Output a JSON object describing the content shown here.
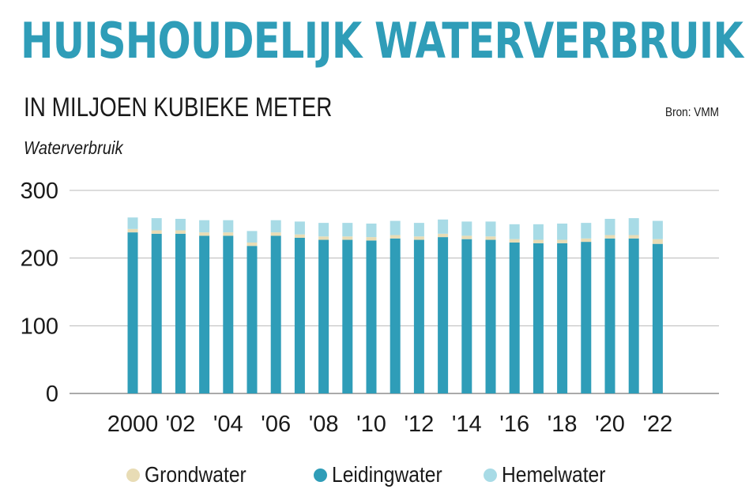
{
  "title": "HUISHOUDELIJK WATERVERBRUIK",
  "subtitle": "IN MILJOEN KUBIEKE METER",
  "source": "Bron: VMM",
  "colors": {
    "title": "#2f9db8",
    "grondwater": "#e8dcb5",
    "leidingwater": "#2f9db8",
    "hemelwater": "#a8dbe6",
    "grid": "#b8b8b8",
    "axis": "#555555"
  },
  "chart_data": {
    "type": "bar",
    "stacked": true,
    "ylabel": "Waterverbruik",
    "ylim": [
      0,
      300
    ],
    "yticks": [
      0,
      100,
      200,
      300
    ],
    "grid": true,
    "legend_position": "bottom",
    "x": [
      2000,
      2001,
      2002,
      2003,
      2004,
      2005,
      2006,
      2007,
      2008,
      2009,
      2010,
      2011,
      2012,
      2013,
      2014,
      2015,
      2016,
      2017,
      2018,
      2019,
      2020,
      2021,
      2022
    ],
    "xtick_labels": [
      "2000",
      "'02",
      "'04",
      "'06",
      "'08",
      "'10",
      "'12",
      "'14",
      "'16",
      "'18",
      "'20",
      "'22"
    ],
    "xtick_values": [
      2000,
      2002,
      2004,
      2006,
      2008,
      2010,
      2012,
      2014,
      2016,
      2018,
      2020,
      2022
    ],
    "series": [
      {
        "name": "Leidingwater",
        "color": "#2f9db8",
        "values": [
          238,
          236,
          236,
          233,
          233,
          218,
          233,
          230,
          227,
          227,
          226,
          229,
          227,
          231,
          228,
          227,
          223,
          222,
          222,
          224,
          229,
          229,
          221
        ]
      },
      {
        "name": "Grondwater",
        "color": "#e8dcb5",
        "values": [
          5,
          5,
          5,
          5,
          5,
          5,
          5,
          5,
          5,
          5,
          5,
          5,
          5,
          5,
          5,
          5,
          5,
          5,
          5,
          5,
          5,
          5,
          7
        ]
      },
      {
        "name": "Hemelwater",
        "color": "#a8dbe6",
        "values": [
          17,
          18,
          17,
          18,
          18,
          17,
          18,
          19,
          20,
          20,
          20,
          21,
          20,
          21,
          21,
          22,
          22,
          23,
          24,
          23,
          24,
          25,
          27
        ]
      }
    ],
    "legend": [
      "Grondwater",
      "Leidingwater",
      "Hemelwater"
    ]
  }
}
